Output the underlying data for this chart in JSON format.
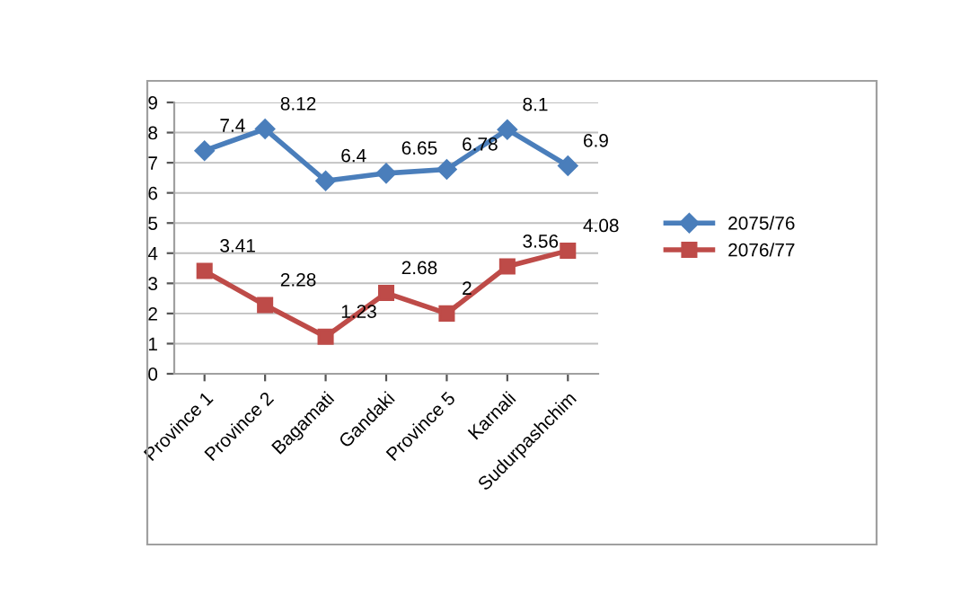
{
  "chart_data": {
    "type": "line",
    "categories": [
      "Province 1",
      "Province 2",
      "Bagamati",
      "Gandaki",
      "Province 5",
      "Karnali",
      "Sudurpashchim"
    ],
    "series": [
      {
        "name": "2075/76",
        "color": "#4a7ebb",
        "marker": "diamond",
        "values": [
          7.4,
          8.12,
          6.4,
          6.65,
          6.78,
          8.1,
          6.9
        ]
      },
      {
        "name": "2076/77",
        "color": "#be4b48",
        "marker": "square",
        "values": [
          3.41,
          2.28,
          1.23,
          2.68,
          2,
          3.56,
          4.08
        ]
      }
    ],
    "ylim": [
      0,
      9
    ],
    "yticks": [
      0,
      1,
      2,
      3,
      4,
      5,
      6,
      7,
      8,
      9
    ],
    "grid": "y",
    "legend": "right",
    "data_labels": true
  }
}
